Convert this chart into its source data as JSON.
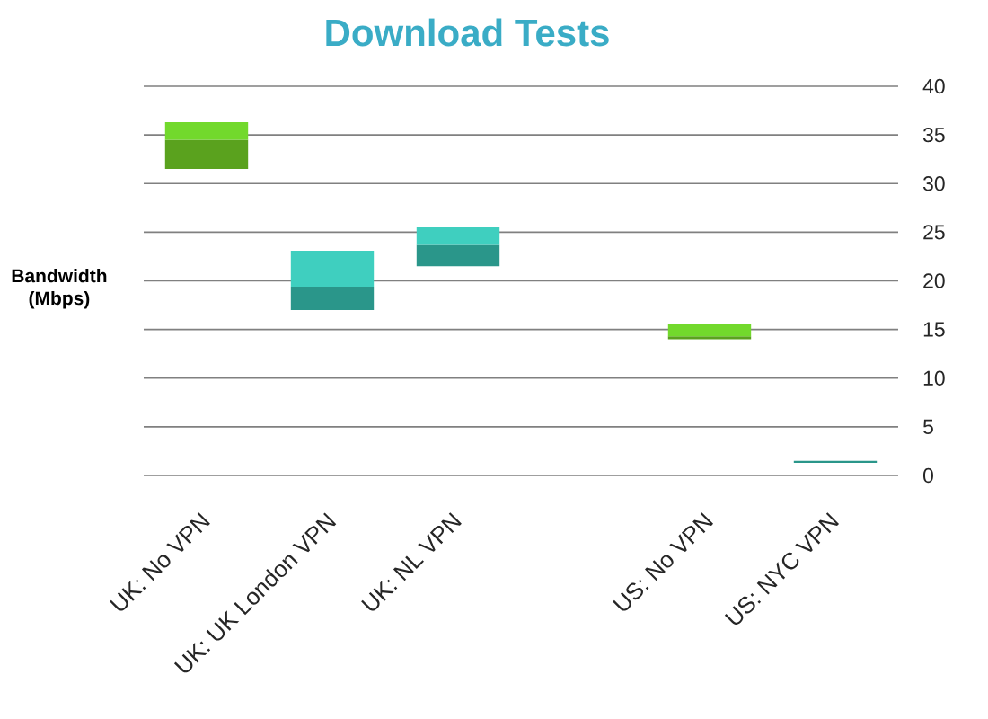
{
  "chart_data": {
    "type": "bar",
    "title": "Download Tests",
    "ylabel": "Bandwidth (Mbps)",
    "categories": [
      "UK: No VPN",
      "UK: UK London VPN",
      "UK: NL VPN",
      null,
      "US: No VPN",
      "US: NYC VPN"
    ],
    "series": [
      {
        "colors": [
          "#5aa21e",
          "#2a968a",
          "#2a968a",
          null,
          "#5aa21e",
          "#2a968a"
        ],
        "base": [
          31.5,
          17,
          21.5,
          null,
          14,
          1.3
        ],
        "values": [
          3,
          2.4,
          2.2,
          null,
          0.3,
          0.2
        ]
      },
      {
        "colors": [
          "#72d92c",
          "#3fcfbf",
          "#3fcfbf",
          null,
          "#72d92c",
          null
        ],
        "base": [
          34.5,
          19.4,
          23.7,
          null,
          14.3,
          null
        ],
        "values": [
          1.8,
          3.7,
          1.8,
          null,
          1.3,
          null
        ]
      }
    ],
    "ylim": [
      0,
      40
    ],
    "yticks": [
      0,
      5,
      10,
      15,
      20,
      25,
      30,
      35,
      40
    ],
    "grid": "y"
  }
}
